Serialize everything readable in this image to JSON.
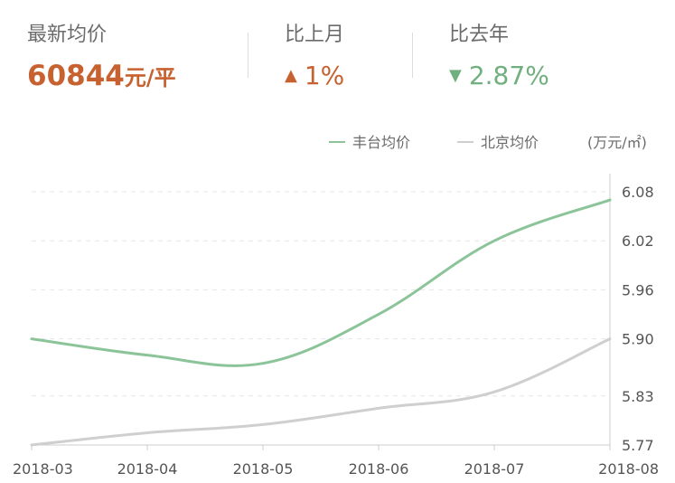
{
  "summary": {
    "latest_price_label": "最新均价",
    "latest_price_value": "60844",
    "latest_price_unit": "元/平",
    "mom_label": "比上月",
    "mom_value": "1%",
    "mom_direction": "up",
    "yoy_label": "比去年",
    "yoy_value": "2.87%",
    "yoy_direction": "down",
    "up_color": "#c7612f",
    "down_color": "#6fb07e"
  },
  "chart_data": {
    "type": "line",
    "unit_label": "(万元/㎡)",
    "categories": [
      "2018-03",
      "2018-04",
      "2018-05",
      "2018-06",
      "2018-07",
      "2018-08"
    ],
    "series": [
      {
        "name": "丰台均价",
        "color": "#8cc49a",
        "values": [
          5.9,
          5.88,
          5.87,
          5.93,
          6.02,
          6.07
        ]
      },
      {
        "name": "北京均价",
        "color": "#cfcfcf",
        "values": [
          5.77,
          5.785,
          5.795,
          5.815,
          5.835,
          5.9
        ]
      }
    ],
    "y_ticks": [
      "6.08",
      "6.02",
      "5.96",
      "5.90",
      "5.83",
      "5.77"
    ],
    "ylim": [
      5.77,
      6.08
    ],
    "grid": true,
    "legend_position": "top-right",
    "y_axis_position": "right"
  }
}
